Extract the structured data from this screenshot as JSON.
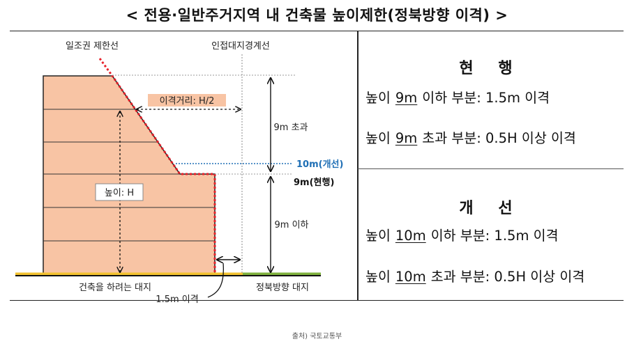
{
  "title": "< 전용·일반주거지역 내 건축물 높이제한(정북방향 이격) >",
  "diagram": {
    "sunlight_line_label": "일조권 제한선",
    "boundary_label": "인접대지경계선",
    "setback_distance_label": "이격거리: H/2",
    "height_label": "높이: H",
    "over_9m_label": "9m 초과",
    "under_9m_label": "9m 이하",
    "improved_10m_label": "10m(개선)",
    "current_9m_label": "9m(현행)",
    "site_label": "건축을 하려는 대지",
    "north_site_label": "정북방향 대지",
    "setback_15_label": "1.5m 이격"
  },
  "current": {
    "heading": "현 행",
    "line1": {
      "a": "높이",
      "b": "9m",
      "c": "이하 부분: 1.5m 이격"
    },
    "line2": {
      "a": "높이",
      "b": "9m",
      "c": "초과 부분: 0.5H 이상 이격"
    }
  },
  "improved": {
    "heading": "개 선",
    "line1": {
      "a": "높이",
      "b": "10m",
      "c": "이하 부분: 1.5m 이격"
    },
    "line2": {
      "a": "높이",
      "b": "10m",
      "c": "초과 부분: 0.5H 이상 이격"
    }
  },
  "source": "출처) 국토교통부",
  "colors": {
    "building_fill": "#F8C4A4",
    "sunlight_line": "#E8202A",
    "improved_label": "#1F6FB5",
    "ground_left": "#F2C230",
    "ground_right": "#7EB13D"
  }
}
